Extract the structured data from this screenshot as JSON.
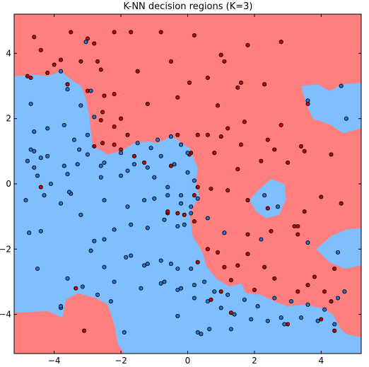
{
  "chart_data": {
    "type": "scatter",
    "title": "K-NN decision regions (K=3)",
    "xlabel": "",
    "ylabel": "",
    "xlim": [
      -5.2,
      5.2
    ],
    "ylim": [
      -5.2,
      5.2
    ],
    "xticks": [
      -4,
      -2,
      0,
      2,
      4
    ],
    "yticks": [
      -4,
      -2,
      0,
      2,
      4
    ],
    "grid": false,
    "colors": {
      "region_red": "#ff7f7f",
      "region_blue": "#7fbfff",
      "point_red": "#cc0000",
      "point_blue": "#1f77d4",
      "point_edge": "#000000"
    },
    "region_blue_polygons": [
      [
        [
          -5.2,
          3.3
        ],
        [
          -4.6,
          3.35
        ],
        [
          -4.2,
          3.3
        ],
        [
          -3.8,
          3.45
        ],
        [
          -3.5,
          3.2
        ],
        [
          -3.2,
          3.0
        ],
        [
          -3.05,
          2.6
        ],
        [
          -2.95,
          2.1
        ],
        [
          -2.9,
          1.6
        ],
        [
          -2.85,
          1.2
        ],
        [
          -2.65,
          1.05
        ],
        [
          -2.4,
          0.9
        ],
        [
          -2.0,
          1.0
        ],
        [
          -1.6,
          1.25
        ],
        [
          -1.2,
          1.3
        ],
        [
          -0.9,
          1.25
        ],
        [
          -0.5,
          1.45
        ],
        [
          -0.3,
          1.35
        ],
        [
          0.05,
          1.1
        ],
        [
          0.3,
          0.5
        ],
        [
          0.25,
          0.0
        ],
        [
          0.35,
          -0.4
        ],
        [
          0.05,
          -0.9
        ],
        [
          0.15,
          -1.6
        ],
        [
          0.45,
          -2.1
        ],
        [
          0.55,
          -2.5
        ],
        [
          0.85,
          -2.9
        ],
        [
          1.25,
          -3.15
        ],
        [
          1.6,
          -3.05
        ],
        [
          1.75,
          -3.35
        ],
        [
          2.2,
          -3.4
        ],
        [
          2.6,
          -3.6
        ],
        [
          3.0,
          -3.75
        ],
        [
          3.5,
          -3.7
        ],
        [
          4.0,
          -3.8
        ],
        [
          4.35,
          -4.0
        ],
        [
          4.55,
          -4.4
        ],
        [
          4.75,
          -4.6
        ],
        [
          5.2,
          -4.7
        ],
        [
          5.2,
          -5.2
        ],
        [
          -1.9,
          -5.2
        ],
        [
          -2.1,
          -4.9
        ],
        [
          -2.2,
          -4.3
        ],
        [
          -2.4,
          -3.7
        ],
        [
          -2.75,
          -3.5
        ],
        [
          -3.3,
          -3.35
        ],
        [
          -3.65,
          -3.55
        ],
        [
          -3.75,
          -4.1
        ],
        [
          -4.2,
          -3.9
        ],
        [
          -5.2,
          -3.95
        ]
      ],
      [
        [
          -0.75,
          0.9
        ],
        [
          -0.5,
          0.95
        ],
        [
          -0.45,
          0.55
        ],
        [
          -0.65,
          0.45
        ],
        [
          -0.8,
          0.6
        ]
      ],
      [
        [
          -0.3,
          -0.25
        ],
        [
          0.05,
          -0.15
        ],
        [
          0.15,
          -0.45
        ],
        [
          -0.2,
          -0.75
        ],
        [
          -0.45,
          -0.55
        ]
      ],
      [
        [
          1.85,
          -0.5
        ],
        [
          2.1,
          -0.2
        ],
        [
          2.5,
          0.15
        ],
        [
          2.9,
          0.0
        ],
        [
          2.95,
          -0.45
        ],
        [
          2.75,
          -0.95
        ],
        [
          2.35,
          -1.05
        ],
        [
          2.05,
          -0.85
        ]
      ],
      [
        [
          3.4,
          3.0
        ],
        [
          3.9,
          3.05
        ],
        [
          4.25,
          2.85
        ],
        [
          4.65,
          3.05
        ],
        [
          5.2,
          3.1
        ],
        [
          5.2,
          1.7
        ],
        [
          4.65,
          1.55
        ],
        [
          4.3,
          1.8
        ],
        [
          3.75,
          2.0
        ],
        [
          3.55,
          2.45
        ]
      ],
      [
        [
          3.85,
          -2.0
        ],
        [
          4.3,
          -1.6
        ],
        [
          4.75,
          -1.4
        ],
        [
          5.2,
          -1.35
        ],
        [
          5.2,
          -2.5
        ],
        [
          4.7,
          -2.6
        ],
        [
          4.25,
          -2.4
        ]
      ]
    ],
    "series": [
      {
        "label_id": "red",
        "x": [
          -4.6,
          -4.4,
          -3.5,
          -3.0,
          -2.8,
          -2.2,
          -1.7,
          -0.8,
          0.2,
          1.0,
          1.8,
          2.8,
          -4.8,
          -4.2,
          -3.8,
          -4.0,
          -3.2,
          -2.7,
          -2.6,
          -1.5,
          -0.5,
          0.05,
          0.6,
          1.1,
          1.6,
          2.3,
          -4.7,
          -3.6,
          -3.0,
          -2.5,
          -2.2,
          -1.2,
          -0.3,
          0.9,
          1.5,
          -2.6,
          -2.2,
          -1.8,
          -0.3,
          0.3,
          1.0,
          1.7,
          2.4,
          3.4,
          3.6,
          -2.0,
          -2.55,
          0.6,
          1.2,
          1.6,
          2.6,
          2.8,
          0.1,
          -0.5,
          -2.55,
          -2.2,
          -2.0,
          -1.6,
          0.05,
          0.8,
          1.5,
          2.2,
          3.0,
          3.5,
          4.3,
          -2.8,
          -1.3,
          0.2,
          0.3,
          0.7,
          1.2,
          2.4,
          3.2,
          1.8,
          -0.6,
          -0.1,
          0.2,
          3.5,
          4.0,
          4.6,
          2.5,
          1.8,
          3.3,
          0.6,
          0.9,
          1.1,
          1.5,
          1.8,
          2.3,
          3.8,
          4.4,
          0.3,
          1.3,
          1.0,
          0.7,
          2.0,
          2.6,
          3.3,
          3.6,
          4.1,
          4.3,
          1.3,
          3.0,
          4.0,
          4.4,
          -4.4,
          -3.35,
          -3.1,
          -0.6,
          -0.3,
          3.3
        ],
        "y": [
          4.5,
          4.1,
          4.65,
          4.45,
          4.3,
          4.65,
          4.65,
          4.65,
          4.55,
          3.95,
          4.25,
          4.35,
          3.3,
          3.4,
          3.8,
          3.65,
          3.75,
          3.75,
          3.5,
          3.45,
          3.75,
          3.1,
          3.25,
          3.75,
          3.1,
          3.05,
          3.25,
          3.05,
          2.85,
          2.7,
          2.75,
          2.45,
          2.65,
          2.4,
          2.95,
          1.95,
          1.75,
          1.5,
          1.5,
          1.5,
          1.45,
          1.9,
          1.35,
          1.15,
          2.45,
          2.0,
          2.2,
          1.5,
          1.7,
          1.2,
          1.05,
          1.8,
          0.95,
          0.55,
          1.25,
          1.2,
          1.05,
          0.85,
          0.9,
          0.95,
          0.45,
          0.7,
          0.65,
          1.0,
          0.9,
          1.15,
          0.65,
          -0.35,
          -0.1,
          -0.15,
          -0.2,
          -0.75,
          -1.3,
          -0.5,
          -0.9,
          -0.95,
          -1.15,
          -0.85,
          -0.4,
          -0.6,
          -1.45,
          -1.55,
          -1.55,
          -2.0,
          -2.1,
          -2.55,
          -2.5,
          -2.15,
          -2.55,
          -2.85,
          -2.6,
          -2.4,
          -2.95,
          -3.3,
          -3.55,
          -3.25,
          -2.9,
          -3.3,
          -3.1,
          -3.3,
          -3.6,
          -3.95,
          -4.3,
          -4.15,
          -4.5,
          -0.1,
          -3.2,
          -4.5,
          -0.85,
          -0.9,
          -1.3
        ]
      },
      {
        "label_id": "blue",
        "x": [
          -3.05,
          -3.8,
          -4.7,
          -3.6,
          -3.2,
          -2.9,
          -4.6,
          -3.4,
          -3.0,
          -2.8,
          -4.7,
          -4.4,
          -3.7,
          -3.3,
          -2.6,
          -4.5,
          -4.1,
          -3.5,
          -2.5,
          -1.8,
          -4.2,
          -3.7,
          -3.25,
          -2.0,
          -1.5,
          -1.1,
          -0.9,
          -0.5,
          -0.2,
          0.0,
          -4.85,
          -4.3,
          -3.8,
          -3.55,
          -1.3,
          -1.0,
          -0.6,
          -0.2,
          0.1,
          -4.75,
          -4.4,
          -3.2,
          -2.8,
          -2.5,
          -2.2,
          -1.7,
          -1.2,
          -0.7,
          -0.1,
          -4.6,
          -4.2,
          -3.6,
          -2.6,
          -2.0,
          -1.6,
          -1.2,
          -0.8,
          -0.4,
          0.0,
          0.2,
          -4.8,
          -4.6,
          -3.0,
          -2.5,
          -1.8,
          -1.0,
          -0.6,
          -0.2,
          0.3,
          -4.5,
          -3.6,
          -3.15,
          -2.7,
          -2.3,
          -1.4,
          -0.7,
          -0.3,
          0.2,
          -2.5,
          -2.9,
          -0.5,
          0.1,
          -3.8,
          -1.7,
          -1.3,
          -0.8,
          -0.3,
          0.5,
          0.8,
          1.2,
          1.7,
          2.1,
          2.6,
          3.1,
          3.6,
          4.1,
          4.5,
          4.7,
          -0.8,
          -0.2,
          0.2,
          0.6,
          1.0,
          1.4,
          1.9,
          2.4,
          2.9,
          3.4,
          3.9,
          4.4,
          -2.2,
          -1.2,
          -0.3,
          0.1,
          0.6,
          1.1,
          2.2,
          3.6,
          4.5,
          -1.85,
          -3.8,
          2.3,
          2.7,
          4.6,
          3.6,
          4.75,
          2.8,
          1.3,
          0.4,
          0.65,
          -0.3,
          0.3,
          -1.9
        ],
        "y": [
          4.35,
          3.45,
          2.45,
          2.9,
          2.4,
          2.85,
          1.6,
          1.35,
          1.5,
          2.05,
          1.05,
          0.8,
          0.55,
          0.6,
          0.2,
          0.25,
          0.0,
          -0.3,
          -0.5,
          -0.7,
          1.7,
          1.8,
          1.05,
          0.95,
          1.25,
          1.1,
          1.35,
          1.45,
          1.2,
          0.95,
          -0.5,
          -0.35,
          -0.6,
          -0.25,
          -0.5,
          -0.45,
          -0.35,
          -0.6,
          -0.7,
          -1.5,
          -1.45,
          -0.95,
          -1.75,
          -1.7,
          -1.4,
          -1.25,
          -1.35,
          -1.1,
          -1.25,
          0.5,
          0.85,
          0.3,
          0.55,
          0.25,
          0.6,
          0.5,
          0.85,
          0.6,
          0.35,
          0.1,
          0.7,
          1.0,
          0.9,
          0.65,
          0.4,
          0.2,
          -0.1,
          -0.35,
          -0.45,
          -2.6,
          -2.9,
          -3.15,
          -3.4,
          -3.6,
          -3.2,
          -3.0,
          -3.25,
          -3.1,
          -2.55,
          -2.05,
          -2.45,
          -2.6,
          -3.8,
          -2.2,
          -2.5,
          -2.35,
          -2.6,
          -3.0,
          -3.3,
          -3.4,
          -3.55,
          -3.75,
          -3.5,
          -3.6,
          -3.7,
          -3.85,
          -3.5,
          -3.3,
          -3.05,
          -3.2,
          -3.5,
          -3.6,
          -3.8,
          -4.0,
          -4.15,
          -4.2,
          -4.3,
          -4.1,
          -4.2,
          -4.3,
          -3.0,
          -2.45,
          -1.3,
          -0.9,
          -1.05,
          -1.5,
          -1.7,
          -1.8,
          -2.1,
          -2.25,
          -3.75,
          -0.35,
          -0.7,
          3.0,
          2.55,
          2.0,
          -4.1,
          -4.45,
          -4.6,
          -4.45,
          -4.05,
          -4.55,
          -4.55
        ]
      }
    ]
  }
}
